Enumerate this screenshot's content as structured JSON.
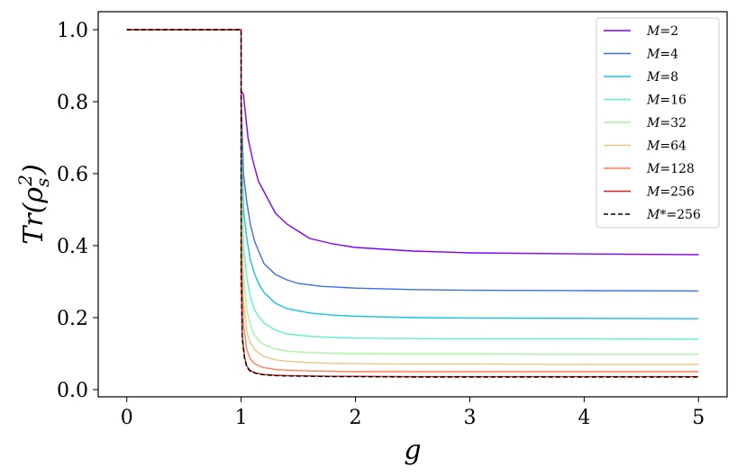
{
  "chart_data": {
    "type": "line",
    "title": "",
    "xlabel": "g",
    "ylabel": "Tr(ρ_s^2)",
    "ylabel_parts": {
      "main": "Tr(ρ",
      "sub": "s",
      "sup": "2",
      "close": ")"
    },
    "xlim": [
      -0.25,
      5.25
    ],
    "ylim": [
      -0.02,
      1.05
    ],
    "xticks": [
      0,
      1,
      2,
      3,
      4,
      5
    ],
    "xtick_labels": [
      "0",
      "1",
      "2",
      "3",
      "4",
      "5"
    ],
    "yticks": [
      0.0,
      0.2,
      0.4,
      0.6,
      0.8,
      1.0
    ],
    "ytick_labels": [
      "0.0",
      "0.2",
      "0.4",
      "0.6",
      "0.8",
      "1.0"
    ],
    "grid": false,
    "legend_position": "top-right",
    "series": [
      {
        "name": "M=2",
        "label_main": "M",
        "label_rest": "=2",
        "color": "#8000ff",
        "dash": "solid",
        "x": [
          0,
          1.0,
          1.0,
          1.02,
          1.06,
          1.1,
          1.15,
          1.2,
          1.25,
          1.3,
          1.4,
          1.5,
          1.6,
          1.8,
          2.0,
          2.5,
          3.0,
          4.0,
          5.0
        ],
        "y": [
          1.0,
          1.0,
          0.83,
          0.82,
          0.7,
          0.64,
          0.58,
          0.55,
          0.52,
          0.49,
          0.46,
          0.44,
          0.42,
          0.405,
          0.395,
          0.385,
          0.38,
          0.377,
          0.375
        ]
      },
      {
        "name": "M=4",
        "label_main": "M",
        "label_rest": "=4",
        "color": "#3c6ee8",
        "dash": "solid",
        "x": [
          0,
          1.0,
          1.0,
          1.02,
          1.05,
          1.08,
          1.12,
          1.16,
          1.2,
          1.3,
          1.4,
          1.5,
          1.7,
          2.0,
          2.5,
          3.0,
          4.0,
          5.0
        ],
        "y": [
          1.0,
          1.0,
          0.82,
          0.6,
          0.52,
          0.46,
          0.41,
          0.38,
          0.35,
          0.32,
          0.305,
          0.295,
          0.287,
          0.282,
          0.278,
          0.276,
          0.275,
          0.274
        ]
      },
      {
        "name": "M=8",
        "label_main": "M",
        "label_rest": "=8",
        "color": "#18c0e0",
        "dash": "solid",
        "x": [
          0,
          1.0,
          1.0,
          1.02,
          1.05,
          1.08,
          1.12,
          1.16,
          1.2,
          1.3,
          1.4,
          1.6,
          1.8,
          2.0,
          2.5,
          3.0,
          4.0,
          5.0
        ],
        "y": [
          1.0,
          1.0,
          0.76,
          0.5,
          0.42,
          0.36,
          0.32,
          0.29,
          0.27,
          0.24,
          0.225,
          0.213,
          0.207,
          0.204,
          0.2,
          0.199,
          0.198,
          0.197
        ]
      },
      {
        "name": "M=16",
        "label_main": "M",
        "label_rest": "=16",
        "color": "#5ef2cc",
        "dash": "solid",
        "x": [
          0,
          1.0,
          1.0,
          1.02,
          1.05,
          1.08,
          1.12,
          1.16,
          1.2,
          1.3,
          1.4,
          1.6,
          1.8,
          2.0,
          2.5,
          3.0,
          4.0,
          5.0
        ],
        "y": [
          1.0,
          1.0,
          0.7,
          0.4,
          0.31,
          0.26,
          0.22,
          0.2,
          0.185,
          0.165,
          0.155,
          0.148,
          0.145,
          0.143,
          0.142,
          0.141,
          0.141,
          0.14
        ]
      },
      {
        "name": "M=32",
        "label_main": "M",
        "label_rest": "=32",
        "color": "#a8f4a0",
        "dash": "solid",
        "x": [
          0,
          1.0,
          1.0,
          1.02,
          1.05,
          1.08,
          1.12,
          1.16,
          1.2,
          1.3,
          1.4,
          1.6,
          1.8,
          2.0,
          2.5,
          3.0,
          4.0,
          5.0
        ],
        "y": [
          1.0,
          1.0,
          0.6,
          0.32,
          0.22,
          0.18,
          0.15,
          0.135,
          0.125,
          0.113,
          0.107,
          0.103,
          0.101,
          0.1,
          0.099,
          0.099,
          0.098,
          0.098
        ]
      },
      {
        "name": "M=64",
        "label_main": "M",
        "label_rest": "=64",
        "color": "#e8c884",
        "dash": "solid",
        "x": [
          0,
          1.0,
          1.0,
          1.02,
          1.05,
          1.08,
          1.12,
          1.16,
          1.2,
          1.3,
          1.4,
          1.6,
          1.8,
          2.0,
          2.5,
          3.0,
          4.0,
          5.0
        ],
        "y": [
          1.0,
          1.0,
          0.5,
          0.25,
          0.16,
          0.13,
          0.11,
          0.1,
          0.092,
          0.083,
          0.079,
          0.075,
          0.073,
          0.072,
          0.071,
          0.071,
          0.07,
          0.07
        ]
      },
      {
        "name": "M=128",
        "label_main": "M",
        "label_rest": "=128",
        "color": "#ff7c54",
        "dash": "solid",
        "x": [
          0,
          1.0,
          1.0,
          1.02,
          1.05,
          1.08,
          1.12,
          1.16,
          1.2,
          1.3,
          1.4,
          1.6,
          1.8,
          2.0,
          2.5,
          3.0,
          4.0,
          5.0
        ],
        "y": [
          1.0,
          1.0,
          0.4,
          0.18,
          0.11,
          0.085,
          0.072,
          0.065,
          0.061,
          0.056,
          0.054,
          0.052,
          0.051,
          0.05,
          0.05,
          0.05,
          0.05,
          0.05
        ]
      },
      {
        "name": "M=256",
        "label_main": "M",
        "label_rest": "=256",
        "color": "#e0201c",
        "dash": "solid",
        "x": [
          0,
          1.0,
          1.0,
          1.01,
          1.03,
          1.05,
          1.08,
          1.12,
          1.16,
          1.2,
          1.3,
          1.4,
          1.6,
          1.8,
          2.0,
          2.5,
          3.0,
          4.0,
          5.0
        ],
        "y": [
          1.0,
          1.0,
          0.35,
          0.15,
          0.09,
          0.065,
          0.053,
          0.047,
          0.044,
          0.042,
          0.04,
          0.039,
          0.038,
          0.037,
          0.037,
          0.036,
          0.036,
          0.036,
          0.036
        ]
      },
      {
        "name": "M*=256",
        "label_main": "M",
        "label_rest": "*=256",
        "color": "#000000",
        "dash": "dashed",
        "x": [
          0,
          1.0,
          1.0,
          1.01,
          1.03,
          1.05,
          1.08,
          1.12,
          1.16,
          1.2,
          1.3,
          1.4,
          1.6,
          1.8,
          2.0,
          2.5,
          3.0,
          4.0,
          5.0
        ],
        "y": [
          1.0,
          1.0,
          0.33,
          0.14,
          0.085,
          0.062,
          0.051,
          0.046,
          0.043,
          0.041,
          0.039,
          0.038,
          0.037,
          0.036,
          0.036,
          0.035,
          0.035,
          0.035,
          0.035
        ]
      }
    ]
  }
}
